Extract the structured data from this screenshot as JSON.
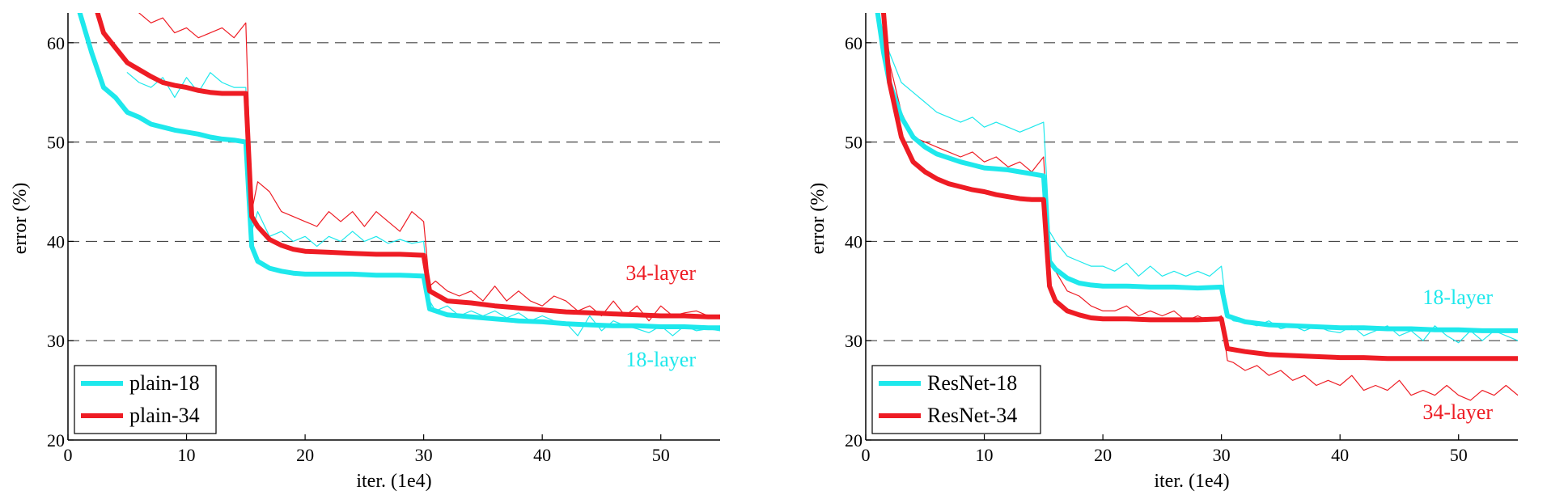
{
  "chart_data": [
    {
      "type": "line",
      "title": "",
      "xlabel": "iter. (1e4)",
      "ylabel": "error (%)",
      "xlim": [
        0,
        55
      ],
      "ylim": [
        20,
        63
      ],
      "xticks": [
        0,
        10,
        20,
        30,
        40,
        50
      ],
      "yticks": [
        20,
        30,
        40,
        50,
        60
      ],
      "grid": "horizontal dashed",
      "legend_position": "bottom-left",
      "series": [
        {
          "name": "plain-18",
          "color": "#1ee8ec",
          "style": "thick",
          "x": [
            1,
            2,
            3,
            4,
            5,
            6,
            7,
            8,
            9,
            10,
            11,
            12,
            13,
            14,
            15,
            15.5,
            16,
            17,
            18,
            19,
            20,
            22,
            24,
            26,
            28,
            30,
            30.5,
            32,
            34,
            36,
            38,
            40,
            42,
            44,
            46,
            48,
            50,
            52,
            54,
            55
          ],
          "y": [
            63,
            59,
            55.5,
            54.5,
            53,
            52.5,
            51.8,
            51.5,
            51.2,
            51,
            50.8,
            50.5,
            50.3,
            50.2,
            50,
            39.5,
            38,
            37.3,
            37,
            36.8,
            36.7,
            36.7,
            36.7,
            36.6,
            36.6,
            36.5,
            33.2,
            32.6,
            32.4,
            32.2,
            32,
            31.9,
            31.7,
            31.6,
            31.5,
            31.5,
            31.4,
            31.4,
            31.3,
            31.3
          ]
        },
        {
          "name": "plain-34",
          "color": "#ee1c24",
          "style": "thick",
          "x": [
            2.5,
            3,
            4,
            5,
            6,
            7,
            8,
            9,
            10,
            11,
            12,
            13,
            14,
            15,
            15.5,
            16,
            17,
            18,
            19,
            20,
            22,
            24,
            26,
            28,
            30,
            30.5,
            32,
            34,
            36,
            38,
            40,
            42,
            44,
            46,
            48,
            50,
            52,
            54,
            55
          ],
          "y": [
            63,
            61,
            59.5,
            58,
            57.3,
            56.6,
            56,
            55.7,
            55.5,
            55.2,
            55,
            54.9,
            54.9,
            54.9,
            42.5,
            41.5,
            40.2,
            39.6,
            39.2,
            39,
            38.9,
            38.8,
            38.7,
            38.7,
            38.6,
            35,
            34,
            33.8,
            33.5,
            33.3,
            33.1,
            32.9,
            32.8,
            32.7,
            32.6,
            32.5,
            32.5,
            32.4,
            32.4
          ]
        },
        {
          "name": "plain-18 (thin)",
          "color": "#1ee8ec",
          "style": "thin",
          "x": [
            5,
            6,
            7,
            8,
            9,
            10,
            11,
            12,
            13,
            14,
            15,
            15.5,
            16,
            17,
            18,
            19,
            20,
            21,
            22,
            23,
            24,
            25,
            26,
            27,
            28,
            29,
            30,
            30.5,
            31,
            32,
            33,
            34,
            35,
            36,
            37,
            38,
            39,
            40,
            41,
            42,
            43,
            44,
            45,
            46,
            47,
            48,
            49,
            50,
            51,
            52,
            53,
            54,
            55
          ],
          "y": [
            57,
            56,
            55.5,
            56.5,
            54.5,
            56.5,
            55,
            57,
            56,
            55.5,
            55.5,
            41,
            43,
            40.5,
            41,
            40,
            40.5,
            39.5,
            40.5,
            40,
            41,
            40,
            40.5,
            39.8,
            40.2,
            39.8,
            40,
            34,
            33,
            33.5,
            32.5,
            33,
            32.5,
            33,
            32.3,
            32.8,
            32,
            32.5,
            32,
            31.8,
            30.5,
            32.5,
            31,
            32,
            31.5,
            31.2,
            30.8,
            31.5,
            30.5,
            31.5,
            31,
            31.2,
            31
          ]
        },
        {
          "name": "plain-34 (thin)",
          "color": "#ee1c24",
          "style": "thin",
          "x": [
            6,
            7,
            8,
            9,
            10,
            11,
            12,
            13,
            14,
            15,
            15.5,
            16,
            17,
            18,
            19,
            20,
            21,
            22,
            23,
            24,
            25,
            26,
            27,
            28,
            29,
            30,
            30.5,
            31,
            32,
            33,
            34,
            35,
            36,
            37,
            38,
            39,
            40,
            41,
            42,
            43,
            44,
            45,
            46,
            47,
            48,
            49,
            50,
            51,
            52,
            53,
            54,
            55
          ],
          "y": [
            63,
            62,
            62.5,
            61,
            61.5,
            60.5,
            61,
            61.5,
            60.5,
            62,
            43,
            46,
            45,
            43,
            42.5,
            42,
            41.5,
            43,
            42,
            43,
            41.5,
            43,
            42,
            41,
            43,
            42,
            35.5,
            36,
            35,
            34.5,
            35,
            34,
            35.5,
            34,
            35,
            34,
            33.5,
            34.5,
            34,
            33,
            33.5,
            32.5,
            34,
            32.5,
            33.5,
            32,
            33.5,
            32.5,
            32.8,
            33,
            32.5,
            32.5
          ]
        }
      ],
      "annotations": [
        {
          "text": "34-layer",
          "color": "#ee1c24"
        },
        {
          "text": "18-layer",
          "color": "#1ee8ec"
        }
      ]
    },
    {
      "type": "line",
      "title": "",
      "xlabel": "iter. (1e4)",
      "ylabel": "error (%)",
      "xlim": [
        0,
        55
      ],
      "ylim": [
        20,
        63
      ],
      "xticks": [
        0,
        10,
        20,
        30,
        40,
        50
      ],
      "yticks": [
        20,
        30,
        40,
        50,
        60
      ],
      "grid": "horizontal dashed",
      "legend_position": "bottom-left",
      "series": [
        {
          "name": "ResNet-18",
          "color": "#1ee8ec",
          "style": "thick",
          "x": [
            1,
            1.5,
            2,
            3,
            4,
            5,
            6,
            7,
            8,
            9,
            10,
            11,
            12,
            13,
            14,
            15,
            15.5,
            16,
            17,
            18,
            19,
            20,
            22,
            24,
            26,
            28,
            30,
            30.5,
            32,
            34,
            36,
            38,
            40,
            42,
            44,
            46,
            48,
            50,
            52,
            54,
            55
          ],
          "y": [
            63,
            59,
            56,
            52.5,
            50.5,
            49.5,
            48.8,
            48.4,
            48,
            47.7,
            47.4,
            47.3,
            47.2,
            47,
            46.8,
            46.6,
            38,
            37.2,
            36.3,
            35.8,
            35.6,
            35.5,
            35.5,
            35.4,
            35.4,
            35.3,
            35.4,
            32.5,
            31.9,
            31.6,
            31.5,
            31.4,
            31.3,
            31.3,
            31.2,
            31.2,
            31.1,
            31.1,
            31,
            31,
            31
          ]
        },
        {
          "name": "ResNet-34",
          "color": "#ee1c24",
          "style": "thick",
          "x": [
            1.5,
            2,
            3,
            4,
            5,
            6,
            7,
            8,
            9,
            10,
            11,
            12,
            13,
            14,
            15,
            15.5,
            16,
            17,
            18,
            19,
            20,
            22,
            24,
            26,
            28,
            30,
            30.5,
            32,
            34,
            36,
            38,
            40,
            42,
            44,
            46,
            48,
            50,
            52,
            54,
            55
          ],
          "y": [
            63,
            56,
            50.5,
            48,
            47,
            46.3,
            45.8,
            45.5,
            45.2,
            45,
            44.7,
            44.5,
            44.3,
            44.2,
            44.2,
            35.5,
            34,
            33,
            32.6,
            32.3,
            32.2,
            32.2,
            32.1,
            32.1,
            32.1,
            32.2,
            29.2,
            28.9,
            28.6,
            28.5,
            28.4,
            28.3,
            28.3,
            28.2,
            28.2,
            28.2,
            28.2,
            28.2,
            28.2,
            28.2
          ]
        },
        {
          "name": "ResNet-18 (thin)",
          "color": "#1ee8ec",
          "style": "thin",
          "x": [
            1,
            2,
            3,
            4,
            5,
            6,
            7,
            8,
            9,
            10,
            11,
            12,
            13,
            14,
            15,
            15.5,
            16,
            17,
            18,
            19,
            20,
            21,
            22,
            23,
            24,
            25,
            26,
            27,
            28,
            29,
            30,
            30.5,
            31,
            32,
            33,
            34,
            35,
            36,
            37,
            38,
            39,
            40,
            41,
            42,
            43,
            44,
            45,
            46,
            47,
            48,
            49,
            50,
            51,
            52,
            53,
            54,
            55
          ],
          "y": [
            63,
            59,
            56,
            55,
            54,
            53,
            52.5,
            52,
            52.5,
            51.5,
            52,
            51.5,
            51,
            51.5,
            52,
            41,
            40,
            38.5,
            38,
            37.5,
            37.5,
            37,
            37.8,
            36.5,
            37.5,
            36.5,
            37,
            36.5,
            37,
            36.5,
            37.5,
            32.5,
            32,
            31.8,
            31.5,
            32,
            31.2,
            31.5,
            31,
            31.5,
            31,
            30.8,
            31.5,
            30.5,
            31,
            31.5,
            30.5,
            31,
            30,
            31.5,
            30.5,
            29.8,
            31,
            30,
            31,
            30.5,
            30
          ]
        },
        {
          "name": "ResNet-34 (thin)",
          "color": "#ee1c24",
          "style": "thin",
          "x": [
            1.5,
            2,
            3,
            4,
            5,
            6,
            7,
            8,
            9,
            10,
            11,
            12,
            13,
            14,
            15,
            15.5,
            16,
            17,
            18,
            19,
            20,
            21,
            22,
            23,
            24,
            25,
            26,
            27,
            28,
            29,
            30,
            30.5,
            31,
            32,
            33,
            34,
            35,
            36,
            37,
            38,
            39,
            40,
            41,
            42,
            43,
            44,
            45,
            46,
            47,
            48,
            49,
            50,
            51,
            52,
            53,
            54,
            55
          ],
          "y": [
            63,
            58,
            53,
            50.5,
            50,
            49.5,
            49,
            48.5,
            49,
            48,
            48.5,
            47.5,
            48,
            47,
            48.5,
            38,
            37,
            35,
            34.5,
            33.5,
            33,
            33,
            33.5,
            32.5,
            33,
            32.5,
            33,
            32,
            32.5,
            32,
            32.5,
            28,
            27.8,
            27,
            27.5,
            26.5,
            27,
            26,
            26.5,
            25.5,
            26,
            25.5,
            26.5,
            25,
            25.5,
            25,
            26,
            24.5,
            25,
            24.5,
            25.5,
            24.5,
            24,
            25,
            24.5,
            25.5,
            24.5
          ]
        }
      ],
      "annotations": [
        {
          "text": "18-layer",
          "color": "#1ee8ec"
        },
        {
          "text": "34-layer",
          "color": "#ee1c24"
        }
      ]
    }
  ]
}
